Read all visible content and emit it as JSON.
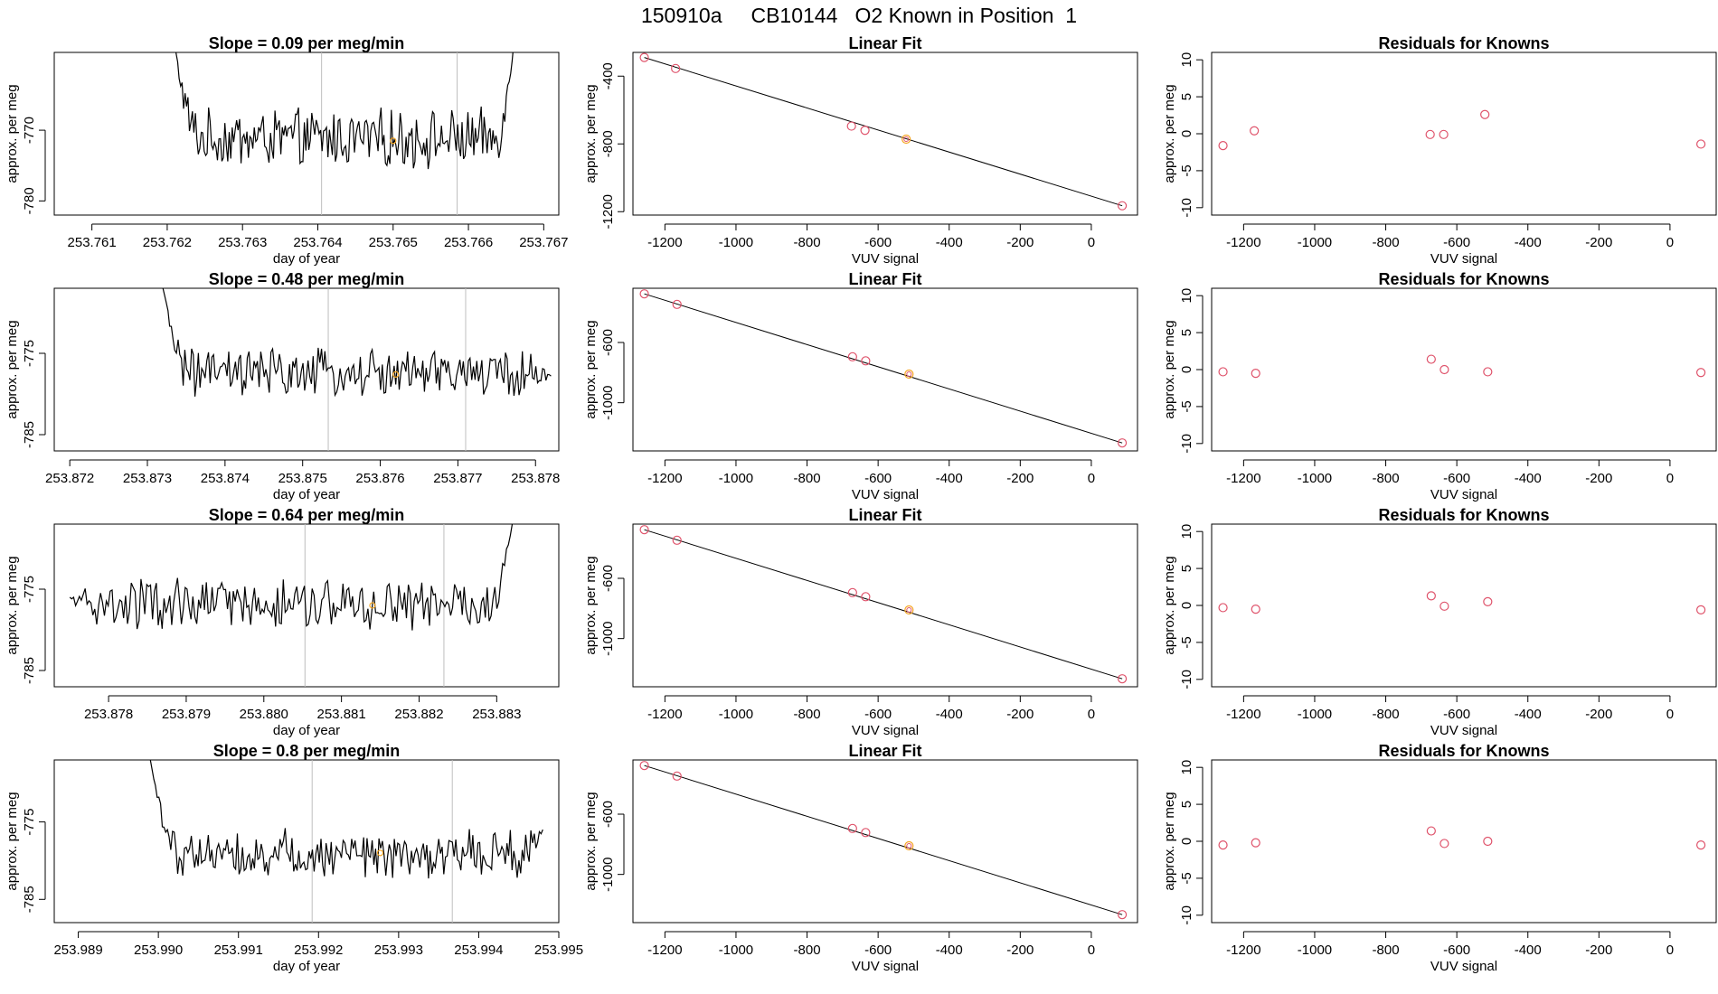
{
  "figure": {
    "title": "150910a     CB10144   O2 Known in Position  1"
  },
  "colors": {
    "line": "#000000",
    "axis": "#000000",
    "vline": "#bebebe",
    "point_red": "#df536b",
    "point_orange": "#f5a623"
  },
  "chart_data": [
    {
      "type": "line",
      "title": "Slope =  0.09  per meg/min",
      "xlabel": "day of year",
      "ylabel": "approx. per meg",
      "xlim": [
        253.7605,
        253.7672
      ],
      "ylim": [
        -782,
        -759
      ],
      "xticks": [
        "253.761",
        "253.762",
        "253.763",
        "253.764",
        "253.765",
        "253.766",
        "253.767"
      ],
      "xtick_values": [
        253.761,
        253.762,
        253.763,
        253.764,
        253.765,
        253.766,
        253.767
      ],
      "yticks": [
        "-770",
        "-780"
      ],
      "ytick_values": [
        -770,
        -780
      ],
      "x_start": 253.7621,
      "x_end": 253.7666,
      "base": -771.2,
      "noise": 3.5,
      "start_val": -758,
      "end_val": -758,
      "vlines": [
        253.76405,
        253.76585
      ],
      "marker": {
        "x": 253.765,
        "y": -771.5
      }
    },
    {
      "type": "scatter",
      "title": "Linear Fit",
      "xlabel": "VUV signal",
      "ylabel": "approx. per meg",
      "xlim": [
        -1290,
        130
      ],
      "ylim": [
        -1220,
        -260
      ],
      "xticks": [
        "-1200",
        "-1000",
        "-800",
        "-600",
        "-400",
        "-200",
        "0"
      ],
      "xtick_values": [
        -1200,
        -1000,
        -800,
        -600,
        -400,
        -200,
        0
      ],
      "yticks": [
        "-400",
        "-800",
        "-1200"
      ],
      "ytick_values": [
        -400,
        -800,
        -1200
      ],
      "points_x": [
        -1258,
        -1170,
        -675,
        -637,
        -521,
        87
      ],
      "points_y": [
        -290,
        -355,
        -695,
        -720,
        -772,
        -1165
      ],
      "highlight_index": 4,
      "fit_line": {
        "x": [
          -1258,
          87
        ],
        "y": [
          -290,
          -1165
        ]
      }
    },
    {
      "type": "scatter",
      "title": "Residuals for Knowns",
      "xlabel": "VUV signal",
      "ylabel": "approx. per meg",
      "xlim": [
        -1290,
        130
      ],
      "ylim": [
        -11,
        11
      ],
      "xticks": [
        "-1200",
        "-1000",
        "-800",
        "-600",
        "-400",
        "-200",
        "0"
      ],
      "xtick_values": [
        -1200,
        -1000,
        -800,
        -600,
        -400,
        -200,
        0
      ],
      "yticks": [
        "10",
        "5",
        "0",
        "-5",
        "-10"
      ],
      "ytick_values": [
        10,
        5,
        0,
        -5,
        -10
      ],
      "points_x": [
        -1258,
        -1170,
        -675,
        -637,
        -521,
        87
      ],
      "points_y": [
        -1.6,
        0.4,
        -0.1,
        -0.1,
        2.6,
        -1.4
      ]
    },
    {
      "type": "line",
      "title": "Slope =  0.48  per meg/min",
      "xlabel": "day of year",
      "ylabel": "approx. per meg",
      "xlim": [
        253.8718,
        253.8783
      ],
      "ylim": [
        -787,
        -767
      ],
      "xticks": [
        "253.872",
        "253.873",
        "253.874",
        "253.875",
        "253.876",
        "253.877",
        "253.878"
      ],
      "xtick_values": [
        253.872,
        253.873,
        253.874,
        253.875,
        253.876,
        253.877,
        253.878
      ],
      "yticks": [
        "-775",
        "-785"
      ],
      "ytick_values": [
        -775,
        -785
      ],
      "x_start": 253.8732,
      "x_end": 253.8782,
      "base": -777.5,
      "noise": 2.6,
      "start_val": -767,
      "end_val": -777.8,
      "vlines": [
        253.87533,
        253.8771
      ],
      "marker": {
        "x": 253.8762,
        "y": -777.6
      }
    },
    {
      "type": "scatter",
      "title": "Linear Fit",
      "xlabel": "VUV signal",
      "ylabel": "approx. per meg",
      "xlim": [
        -1290,
        130
      ],
      "ylim": [
        -1320,
        -240
      ],
      "xticks": [
        "-1200",
        "-1000",
        "-800",
        "-600",
        "-400",
        "-200",
        "0"
      ],
      "xtick_values": [
        -1200,
        -1000,
        -800,
        -600,
        -400,
        -200,
        0
      ],
      "yticks": [
        "-600",
        "-1000"
      ],
      "ytick_values": [
        -600,
        -1000
      ],
      "points_x": [
        -1258,
        -1166,
        -672,
        -635,
        -513,
        87
      ],
      "points_y": [
        -277,
        -347,
        -695,
        -722,
        -810,
        -1267
      ],
      "highlight_index": 4,
      "fit_line": {
        "x": [
          -1258,
          87
        ],
        "y": [
          -277,
          -1267
        ]
      }
    },
    {
      "type": "scatter",
      "title": "Residuals for Knowns",
      "xlabel": "VUV signal",
      "ylabel": "approx. per meg",
      "xlim": [
        -1290,
        130
      ],
      "ylim": [
        -11,
        11
      ],
      "xticks": [
        "-1200",
        "-1000",
        "-800",
        "-600",
        "-400",
        "-200",
        "0"
      ],
      "xtick_values": [
        -1200,
        -1000,
        -800,
        -600,
        -400,
        -200,
        0
      ],
      "yticks": [
        "10",
        "5",
        "0",
        "-5",
        "-10"
      ],
      "ytick_values": [
        10,
        5,
        0,
        -5,
        -10
      ],
      "points_x": [
        -1258,
        -1166,
        -672,
        -635,
        -513,
        87
      ],
      "points_y": [
        -0.3,
        -0.5,
        1.4,
        0.0,
        -0.3,
        -0.4
      ]
    },
    {
      "type": "line",
      "title": "Slope =  0.64  per meg/min",
      "xlabel": "day of year",
      "ylabel": "approx. per meg",
      "xlim": [
        253.8773,
        253.8838
      ],
      "ylim": [
        -787,
        -767
      ],
      "xticks": [
        "253.878",
        "253.879",
        "253.880",
        "253.881",
        "253.882",
        "253.883"
      ],
      "xtick_values": [
        253.878,
        253.879,
        253.88,
        253.881,
        253.882,
        253.883
      ],
      "yticks": [
        "-775",
        "-785"
      ],
      "ytick_values": [
        -775,
        -785
      ],
      "x_start": 253.8775,
      "x_end": 253.8832,
      "base": -777,
      "noise": 2.8,
      "start_val": -776,
      "end_val": -767,
      "vlines": [
        253.88053,
        253.88232
      ],
      "marker": {
        "x": 253.8814,
        "y": -777
      }
    },
    {
      "type": "scatter",
      "title": "Linear Fit",
      "xlabel": "VUV signal",
      "ylabel": "approx. per meg",
      "xlim": [
        -1290,
        130
      ],
      "ylim": [
        -1320,
        -240
      ],
      "xticks": [
        "-1200",
        "-1000",
        "-800",
        "-600",
        "-400",
        "-200",
        "0"
      ],
      "xtick_values": [
        -1200,
        -1000,
        -800,
        -600,
        -400,
        -200,
        0
      ],
      "yticks": [
        "-600",
        "-1000"
      ],
      "ytick_values": [
        -600,
        -1000
      ],
      "points_x": [
        -1258,
        -1166,
        -672,
        -635,
        -513,
        87
      ],
      "points_y": [
        -277,
        -347,
        -695,
        -722,
        -810,
        -1267
      ],
      "highlight_index": 4,
      "fit_line": {
        "x": [
          -1258,
          87
        ],
        "y": [
          -277,
          -1267
        ]
      }
    },
    {
      "type": "scatter",
      "title": "Residuals for Knowns",
      "xlabel": "VUV signal",
      "ylabel": "approx. per meg",
      "xlim": [
        -1290,
        130
      ],
      "ylim": [
        -11,
        11
      ],
      "xticks": [
        "-1200",
        "-1000",
        "-800",
        "-600",
        "-400",
        "-200",
        "0"
      ],
      "xtick_values": [
        -1200,
        -1000,
        -800,
        -600,
        -400,
        -200,
        0
      ],
      "yticks": [
        "10",
        "5",
        "0",
        "-5",
        "-10"
      ],
      "ytick_values": [
        10,
        5,
        0,
        -5,
        -10
      ],
      "points_x": [
        -1258,
        -1166,
        -672,
        -635,
        -513,
        87
      ],
      "points_y": [
        -0.3,
        -0.5,
        1.3,
        -0.1,
        0.5,
        -0.6
      ]
    },
    {
      "type": "line",
      "title": "Slope =  0.8  per meg/min",
      "xlabel": "day of year",
      "ylabel": "approx. per meg",
      "xlim": [
        253.9887,
        253.995
      ],
      "ylim": [
        -788,
        -767
      ],
      "xticks": [
        "253.989",
        "253.990",
        "253.991",
        "253.992",
        "253.993",
        "253.994",
        "253.995"
      ],
      "xtick_values": [
        253.989,
        253.99,
        253.991,
        253.992,
        253.993,
        253.994,
        253.995
      ],
      "yticks": [
        "-775",
        "-785"
      ],
      "ytick_values": [
        -775,
        -785
      ],
      "x_start": 253.9899,
      "x_end": 253.9948,
      "base": -779,
      "noise": 2.6,
      "start_val": -767,
      "end_val": -776,
      "vlines": [
        253.99192,
        253.99367
      ],
      "marker": {
        "x": 253.99277,
        "y": -779
      }
    },
    {
      "type": "scatter",
      "title": "Linear Fit",
      "xlabel": "VUV signal",
      "ylabel": "approx. per meg",
      "xlim": [
        -1290,
        130
      ],
      "ylim": [
        -1320,
        -240
      ],
      "xticks": [
        "-1200",
        "-1000",
        "-800",
        "-600",
        "-400",
        "-200",
        "0"
      ],
      "xtick_values": [
        -1200,
        -1000,
        -800,
        -600,
        -400,
        -200,
        0
      ],
      "yticks": [
        "-600",
        "-1000"
      ],
      "ytick_values": [
        -600,
        -1000
      ],
      "points_x": [
        -1258,
        -1166,
        -672,
        -635,
        -513,
        87
      ],
      "points_y": [
        -277,
        -347,
        -695,
        -722,
        -810,
        -1267
      ],
      "highlight_index": 4,
      "fit_line": {
        "x": [
          -1258,
          87
        ],
        "y": [
          -277,
          -1267
        ]
      }
    },
    {
      "type": "scatter",
      "title": "Residuals for Knowns",
      "xlabel": "VUV signal",
      "ylabel": "approx. per meg",
      "xlim": [
        -1290,
        130
      ],
      "ylim": [
        -11,
        11
      ],
      "xticks": [
        "-1200",
        "-1000",
        "-800",
        "-600",
        "-400",
        "-200",
        "0"
      ],
      "xtick_values": [
        -1200,
        -1000,
        -800,
        -600,
        -400,
        -200,
        0
      ],
      "yticks": [
        "10",
        "5",
        "0",
        "-5",
        "-10"
      ],
      "ytick_values": [
        10,
        5,
        0,
        -5,
        -10
      ],
      "points_x": [
        -1258,
        -1166,
        -672,
        -635,
        -513,
        87
      ],
      "points_y": [
        -0.5,
        -0.2,
        1.4,
        -0.3,
        0.0,
        -0.5
      ]
    }
  ]
}
